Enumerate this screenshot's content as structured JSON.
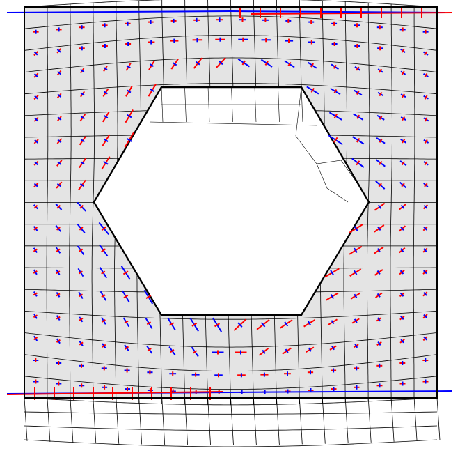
{
  "figure": {
    "description_free": true,
    "colors": {
      "background": "#ffffff",
      "domain_fill": "#e4e4e4",
      "mesh": "#000000",
      "compression": "#0000ff",
      "tension": "#ff0000",
      "hole": "#ffffff"
    },
    "elements": {
      "domain": "specimen-plate",
      "hole": "hexagonal-hole",
      "mesh": "finite-element-mesh",
      "glyphs": "principal-stress-crosses",
      "boundary": "top-and-bottom-loading-bars"
    }
  }
}
